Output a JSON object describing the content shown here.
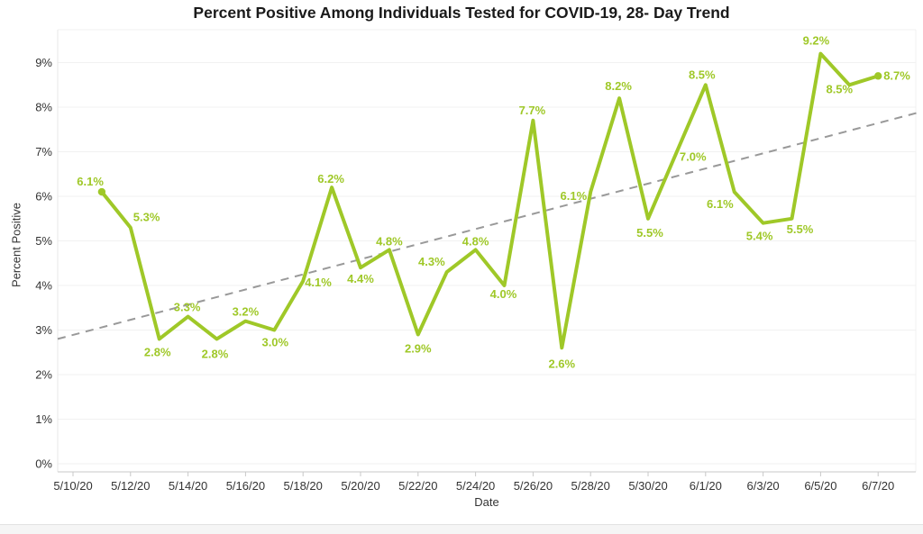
{
  "page": {
    "background_color": "#ffffff",
    "footer_strip_color": "#f5f5f5"
  },
  "chart_data": {
    "type": "line",
    "title": "Percent Positive Among Individuals Tested for COVID-19, 28- Day Trend",
    "xlabel": "Date",
    "ylabel": "Percent Positive",
    "values": [
      6.1,
      5.3,
      2.8,
      3.3,
      2.8,
      3.2,
      3.0,
      4.1,
      6.2,
      4.4,
      4.8,
      2.9,
      4.3,
      4.8,
      4.0,
      7.7,
      2.6,
      6.1,
      8.2,
      5.5,
      7.0,
      8.5,
      6.1,
      5.4,
      5.5,
      9.2,
      8.5,
      8.7
    ],
    "point_labels": [
      "6.1%",
      "5.3%",
      "2.8%",
      "3.3%",
      "2.8%",
      "3.2%",
      "3.0%",
      "4.1%",
      "6.2%",
      "4.4%",
      "4.8%",
      "2.9%",
      "4.3%",
      "4.8%",
      "4.0%",
      "7.7%",
      "2.6%",
      "6.1%",
      "8.2%",
      "5.5%",
      "7.0%",
      "8.5%",
      "6.1%",
      "5.4%",
      "5.5%",
      "9.2%",
      "8.5%",
      "8.7%"
    ],
    "x_tick_labels": [
      "5/10/20",
      "5/12/20",
      "5/14/20",
      "5/16/20",
      "5/18/20",
      "5/20/20",
      "5/22/20",
      "5/24/20",
      "5/26/20",
      "5/28/20",
      "5/30/20",
      "6/1/20",
      "6/3/20",
      "6/5/20",
      "6/7/20"
    ],
    "y_tick_labels": [
      "0%",
      "1%",
      "2%",
      "3%",
      "4%",
      "5%",
      "6%",
      "7%",
      "8%",
      "9%"
    ],
    "ylim": [
      0,
      9
    ],
    "grid": "horizontal-only",
    "legend": "none",
    "series_color": "#9fc828",
    "axis_text_color": "#333333",
    "grid_color": "#f1f1f1",
    "axis_line_color": "#c8c8c8",
    "trend_line": {
      "style": "dashed",
      "color": "#999999",
      "start_value": 2.8,
      "end_value": 7.87
    },
    "label_offsets": [
      [
        "end",
        2,
        -7
      ],
      [
        "start",
        3,
        -7
      ],
      [
        "middle",
        -2,
        19
      ],
      [
        "middle",
        -1,
        -6
      ],
      [
        "middle",
        -2,
        21
      ],
      [
        "middle",
        0,
        -6
      ],
      [
        "middle",
        1,
        18
      ],
      [
        "start",
        2,
        6
      ],
      [
        "middle",
        -1,
        -5
      ],
      [
        "middle",
        0,
        17
      ],
      [
        "middle",
        0,
        -5
      ],
      [
        "middle",
        0,
        20
      ],
      [
        "end",
        -2,
        -7
      ],
      [
        "middle",
        0,
        -5
      ],
      [
        "middle",
        -1,
        14
      ],
      [
        "middle",
        -1,
        -7
      ],
      [
        "middle",
        0,
        22
      ],
      [
        "end",
        -4,
        9
      ],
      [
        "middle",
        -1,
        -9
      ],
      [
        "middle",
        2,
        20
      ],
      [
        "start",
        3,
        10
      ],
      [
        "middle",
        -4,
        -7
      ],
      [
        "end",
        -1,
        18
      ],
      [
        "middle",
        -4,
        19
      ],
      [
        "middle",
        9,
        16
      ],
      [
        "middle",
        -5,
        -10
      ],
      [
        "middle",
        -11,
        9
      ],
      [
        "start",
        6,
        4
      ]
    ]
  }
}
